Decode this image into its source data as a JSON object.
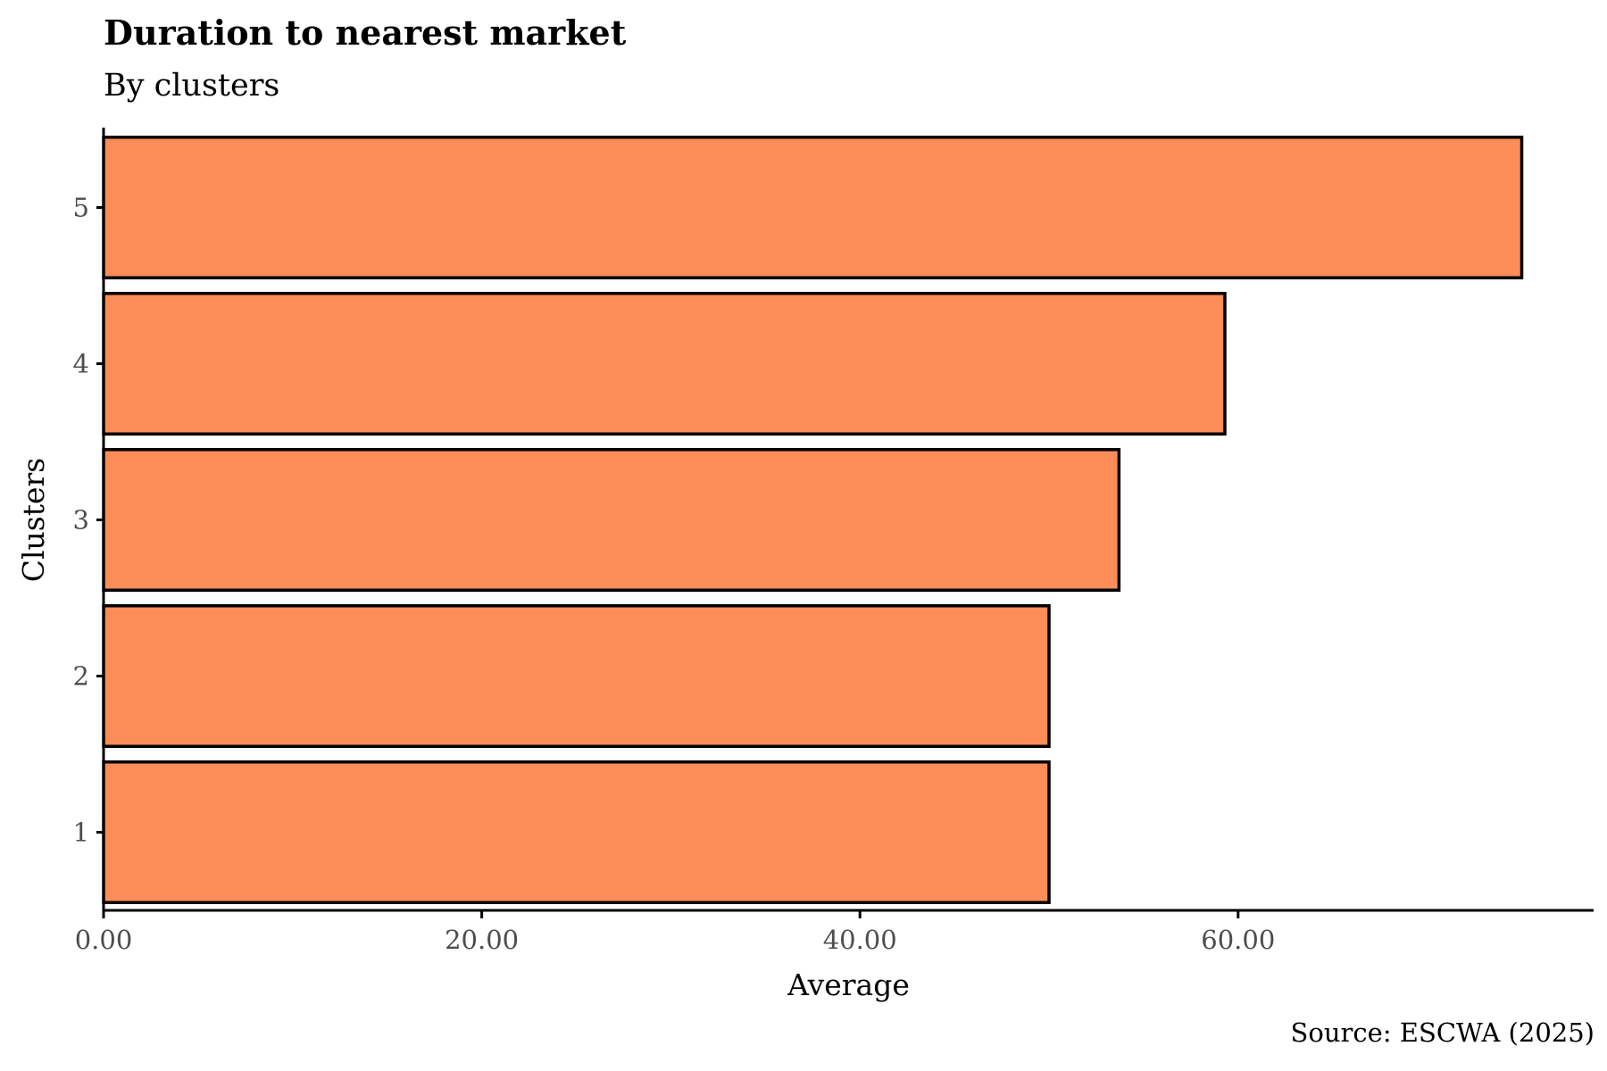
{
  "chart_data": {
    "type": "bar",
    "orientation": "horizontal",
    "title": "Duration to nearest market",
    "subtitle": "By clusters",
    "caption": "Source: ESCWA (2025)",
    "xlabel": "Average",
    "ylabel": "Clusters",
    "categories": [
      "1",
      "2",
      "3",
      "4",
      "5"
    ],
    "values": [
      50.0,
      50.0,
      53.7,
      59.3,
      75.0
    ],
    "xlim": [
      0,
      78.8
    ],
    "xticks": [
      0,
      20,
      40,
      60
    ],
    "xtick_labels": [
      "0.00",
      "20.00",
      "40.00",
      "60.00"
    ],
    "bar_color": "#FC8D59",
    "bar_border_color": "#000000",
    "grid": false
  }
}
